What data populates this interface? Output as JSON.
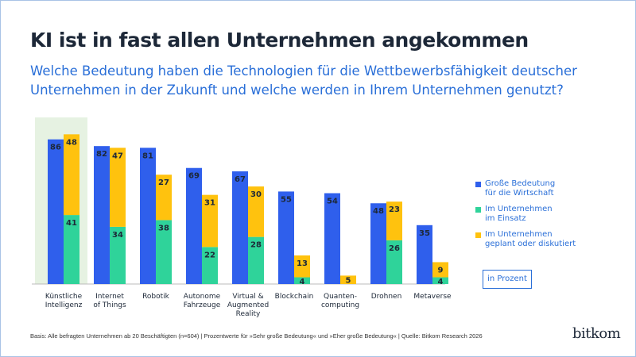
{
  "title": "KI ist in fast allen Unternehmen angekommen",
  "subtitle": "Welche Bedeutung haben die Technologien für die Wettbewerbsfähigkeit deutscher Unternehmen in der Zukunft und welche werden in Ihrem Unternehmen genutzt?",
  "unit_label": "in Prozent",
  "footnote": "Basis: Alle befragten Unternehmen ab 20 Beschäftigten (n=604) | Prozentwerte für »Sehr große Bedeutung« und »Eher große Bedeutung« | Quelle: Bitkom Research 2026",
  "logo": "bitkom",
  "chart_data": {
    "type": "bar",
    "categories": [
      "Künstliche Intelligenz",
      "Internet of Things",
      "Robotik",
      "Autonome Fahrzeuge",
      "Virtual & Augmented Reality",
      "Blockchain",
      "Quanten-computing",
      "Drohnen",
      "Metaverse"
    ],
    "highlighted_category": "Künstliche Intelligenz",
    "series": [
      {
        "name": "Große Bedeutung für die Wirtschaft",
        "color": "#2f5fec",
        "stack": "a",
        "values": [
          86,
          82,
          81,
          69,
          67,
          55,
          54,
          48,
          35
        ]
      },
      {
        "name": "Im Unternehmen im Einsatz",
        "color": "#2fd39a",
        "stack": "b",
        "values": [
          41,
          34,
          38,
          22,
          28,
          4,
          0,
          26,
          4
        ]
      },
      {
        "name": "Im Unternehmen geplant oder diskutiert",
        "color": "#ffc20e",
        "stack": "b",
        "values": [
          48,
          47,
          27,
          31,
          30,
          13,
          5,
          23,
          9
        ]
      }
    ],
    "legend_position": "right",
    "grid": false,
    "ylim": [
      0,
      90
    ]
  }
}
